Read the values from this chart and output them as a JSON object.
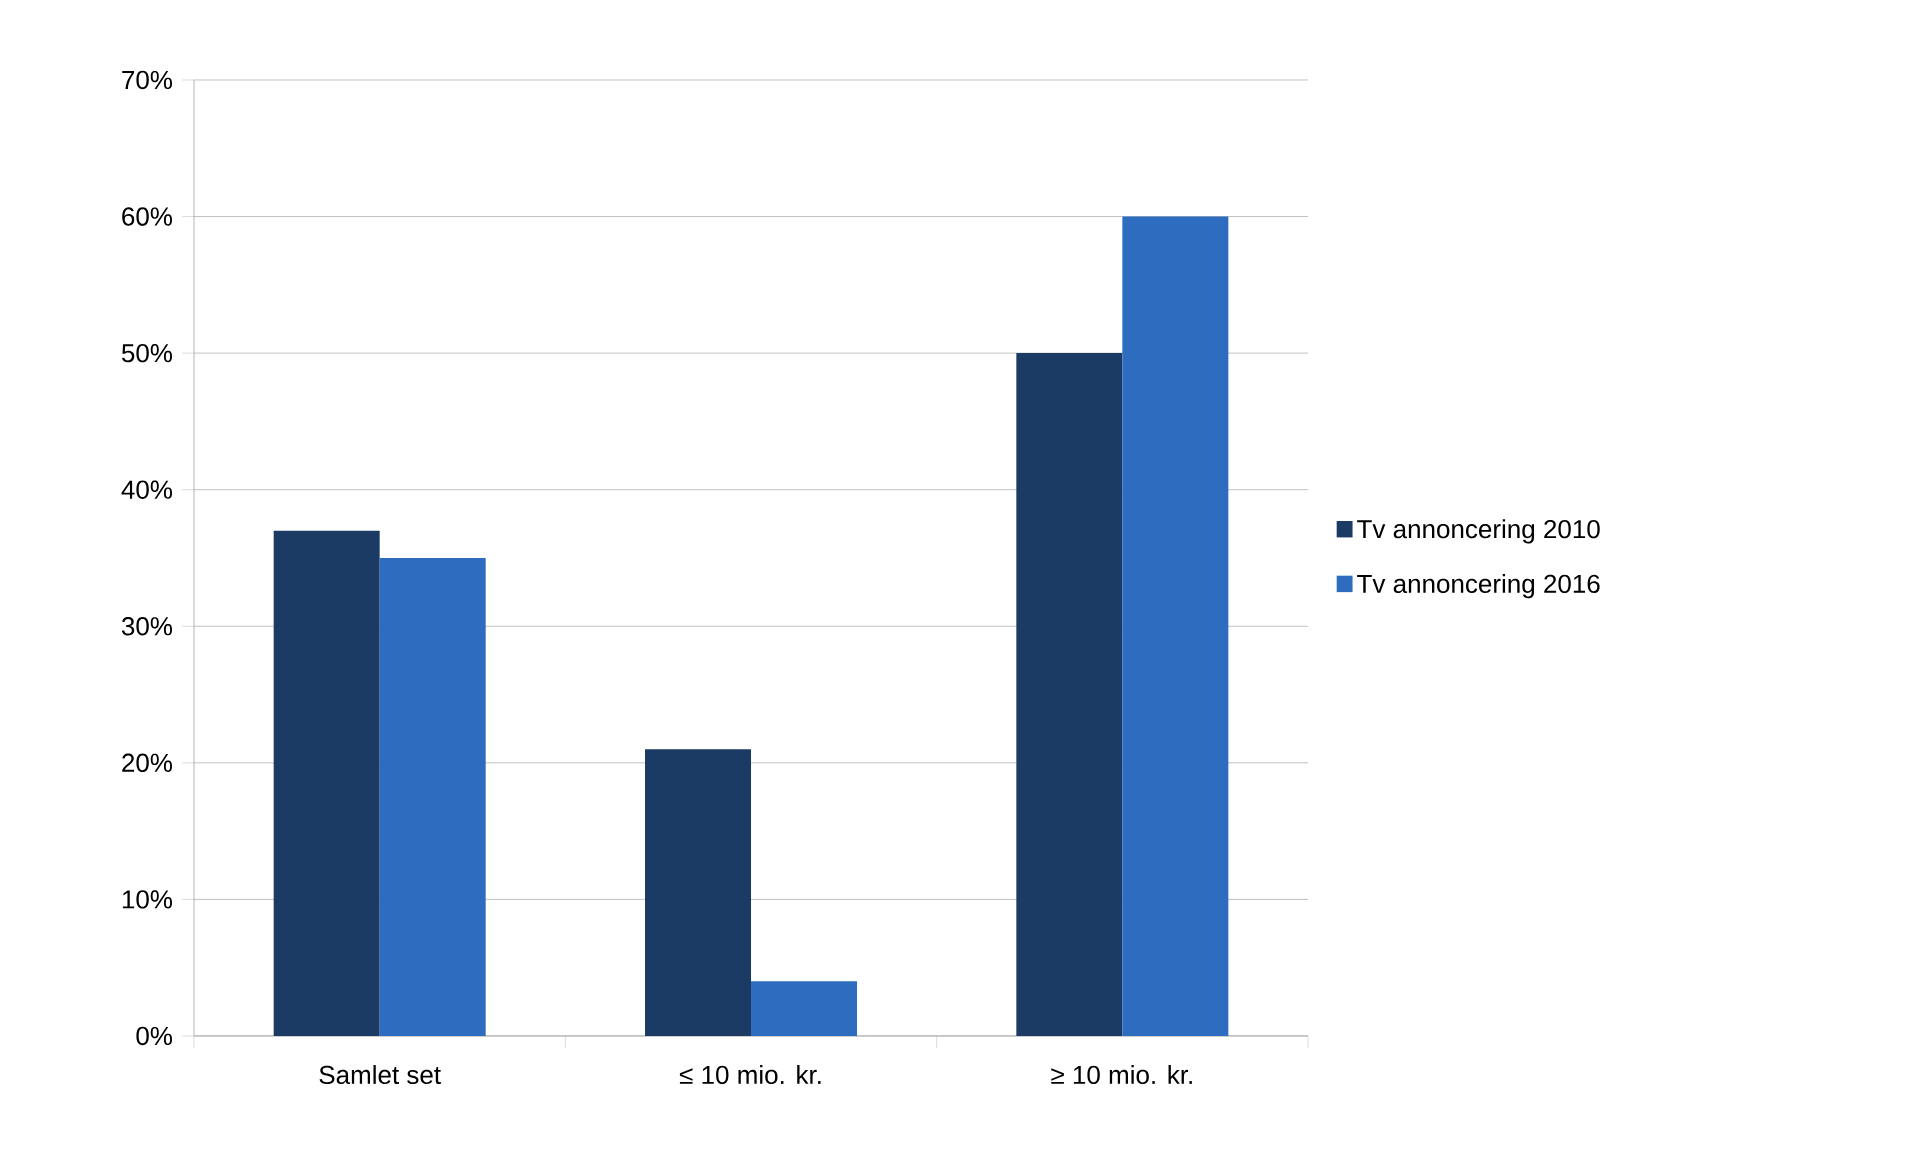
{
  "chart_data": {
    "type": "bar",
    "categories": [
      "Samlet set",
      "≤ 10 mio. kr.",
      "≥ 10 mio. kr."
    ],
    "series": [
      {
        "name": "Tv annoncering 2010",
        "color": "#1b3a64",
        "values": [
          37,
          21,
          50
        ]
      },
      {
        "name": "Tv annoncering 2016",
        "color": "#2e6cbf",
        "values": [
          35,
          4,
          60
        ]
      }
    ],
    "ylim": [
      0,
      70
    ],
    "yticks": [
      {
        "value": 0,
        "label": "0%"
      },
      {
        "value": 10,
        "label": "10%"
      },
      {
        "value": 20,
        "label": "20%"
      },
      {
        "value": 30,
        "label": "30%"
      },
      {
        "value": 40,
        "label": "40%"
      },
      {
        "value": 50,
        "label": "50%"
      },
      {
        "value": 60,
        "label": "60%"
      },
      {
        "value": 70,
        "label": "70%"
      }
    ],
    "grid": "y",
    "legend": "right"
  }
}
